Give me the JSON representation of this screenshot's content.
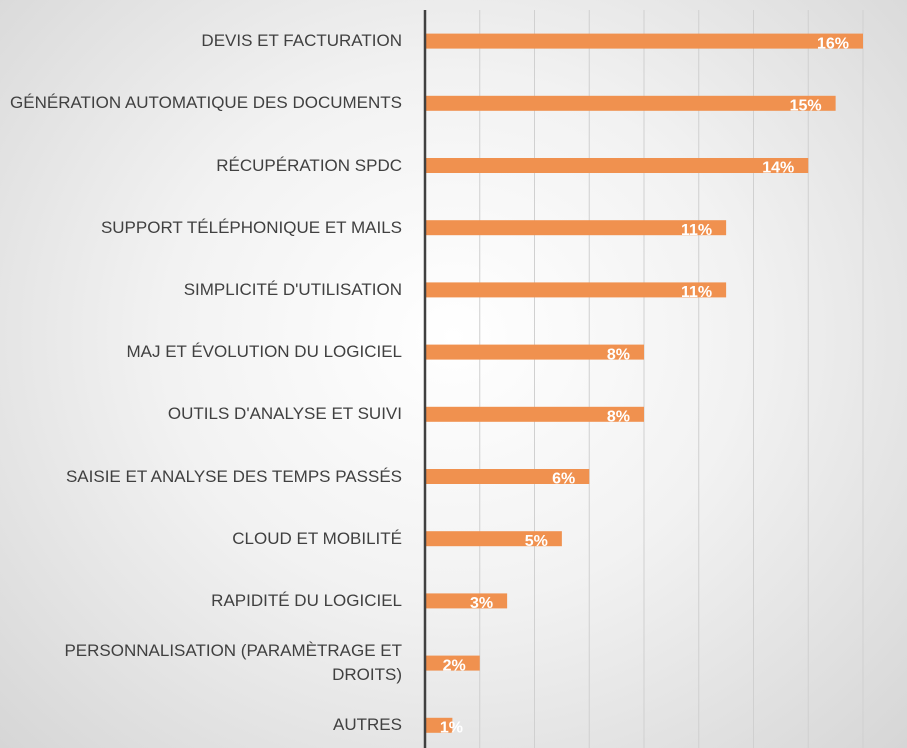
{
  "chart_data": {
    "type": "bar",
    "orientation": "horizontal",
    "categories": [
      "DEVIS ET FACTURATION",
      "GÉNÉRATION AUTOMATIQUE DES DOCUMENTS",
      "RÉCUPÉRATION SPDC",
      "SUPPORT TÉLÉPHONIQUE ET MAILS",
      "SIMPLICITÉ D'UTILISATION",
      "MAJ ET ÉVOLUTION DU LOGICIEL",
      "OUTILS D'ANALYSE ET SUIVI",
      "SAISIE ET ANALYSE DES TEMPS PASSÉS",
      "CLOUD ET MOBILITÉ",
      "RAPIDITÉ DU LOGICIEL",
      "PERSONNALISATION (PARAMÈTRAGE ET DROITS)",
      "AUTRES"
    ],
    "values": [
      16,
      15,
      14,
      11,
      11,
      8,
      8,
      6,
      5,
      3,
      2,
      1
    ],
    "value_labels": [
      "16%",
      "15%",
      "14%",
      "11%",
      "11%",
      "8%",
      "8%",
      "6%",
      "5%",
      "3%",
      "2%",
      "1%"
    ],
    "color": "#f0914f",
    "xlim": [
      0,
      16
    ],
    "xticks": [
      0,
      2,
      4,
      6,
      8,
      10,
      12,
      14,
      16
    ],
    "grid": true
  }
}
